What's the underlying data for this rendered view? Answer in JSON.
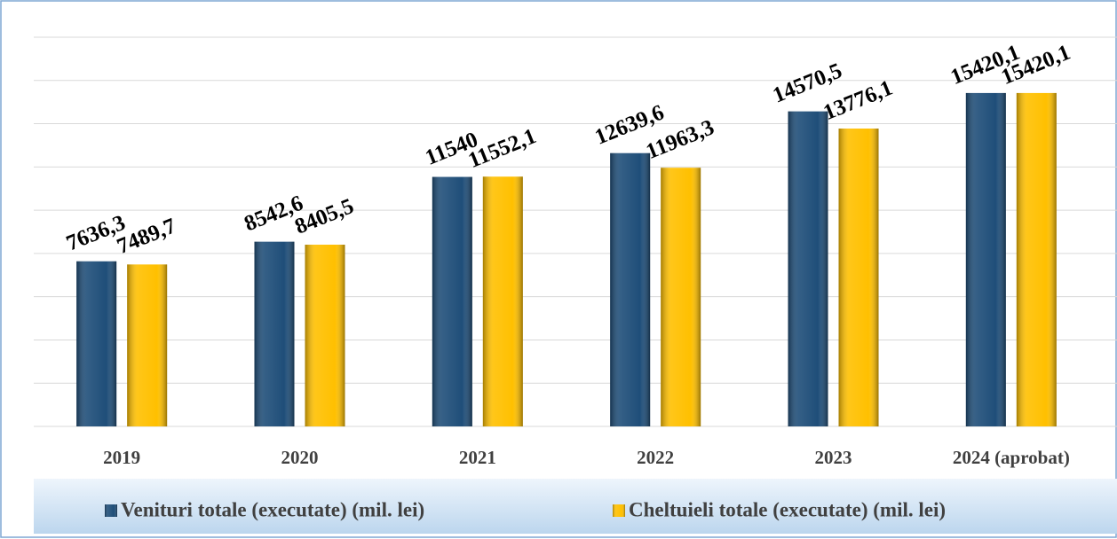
{
  "chart_data": {
    "type": "bar",
    "categories": [
      "2019",
      "2020",
      "2021",
      "2022",
      "2023",
      "2024 (aprobat)"
    ],
    "series": [
      {
        "name": "Venituri totale (executate) (mil. lei)",
        "color": "#1f4e79",
        "values": [
          7636.3,
          8542.6,
          11540,
          12639.6,
          14570.5,
          15420.1
        ],
        "value_labels": [
          "7636,3",
          "8542,6",
          "11540",
          "12639,6",
          "14570,5",
          "15420,1"
        ]
      },
      {
        "name": "Cheltuieli totale (executate) (mil. lei)",
        "color": "#ffc000",
        "values": [
          7489.7,
          8405.5,
          11552.1,
          11963.3,
          13776.1,
          15420.1
        ],
        "value_labels": [
          "7489,7",
          "8405,5",
          "11552,1",
          "11963,3",
          "13776,1",
          "15420,1"
        ]
      }
    ],
    "ylim": [
      0,
      18000
    ],
    "yticks": [
      0,
      2000,
      4000,
      6000,
      8000,
      10000,
      12000,
      14000,
      16000,
      18000
    ],
    "grid": true,
    "legend": "bottom"
  }
}
